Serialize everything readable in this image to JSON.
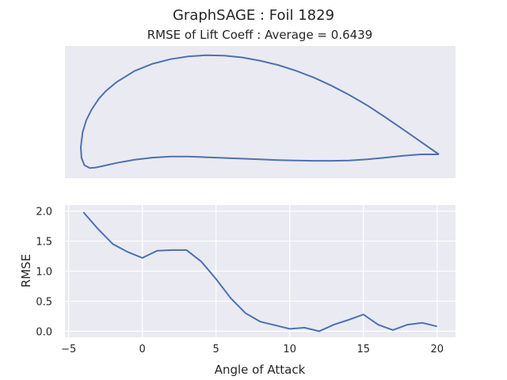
{
  "figure": {
    "suptitle": "GraphSAGE   :   Foil 1829",
    "subtitle": "RMSE of Lift Coeff : Average = 0.6439"
  },
  "colors": {
    "line": "#4c72b0",
    "panel_bg": "#eaeaf2",
    "grid": "#ffffff"
  },
  "chart_data": [
    {
      "type": "line",
      "name": "airfoil-shape",
      "title": "",
      "grid": false,
      "axes_visible": false,
      "series": [
        {
          "x": [
            1.0,
            0.95,
            0.9,
            0.85,
            0.8,
            0.75,
            0.7,
            0.65,
            0.6,
            0.55,
            0.5,
            0.45,
            0.4,
            0.35,
            0.3,
            0.25,
            0.2,
            0.15,
            0.1,
            0.07,
            0.05,
            0.03,
            0.015,
            0.005,
            0.0,
            0.002,
            0.01,
            0.025,
            0.04,
            0.06,
            0.1,
            0.15,
            0.2,
            0.25,
            0.3,
            0.35,
            0.4,
            0.45,
            0.5,
            0.55,
            0.6,
            0.65,
            0.7,
            0.75,
            0.8,
            0.85,
            0.9,
            0.95,
            1.0
          ],
          "y": [
            0.0,
            0.035,
            0.07,
            0.104,
            0.137,
            0.166,
            0.192,
            0.215,
            0.234,
            0.25,
            0.262,
            0.271,
            0.276,
            0.277,
            0.274,
            0.266,
            0.253,
            0.233,
            0.202,
            0.177,
            0.155,
            0.125,
            0.095,
            0.062,
            0.02,
            -0.01,
            -0.03,
            -0.038,
            -0.037,
            -0.033,
            -0.024,
            -0.015,
            -0.009,
            -0.006,
            -0.006,
            -0.008,
            -0.01,
            -0.012,
            -0.014,
            -0.016,
            -0.017,
            -0.018,
            -0.018,
            -0.017,
            -0.014,
            -0.009,
            -0.004,
            0.0,
            0.0
          ]
        }
      ]
    },
    {
      "type": "line",
      "name": "rmse-vs-aoa",
      "title": "",
      "xlabel": "Angle of Attack",
      "ylabel": "RMSE",
      "xlim": [
        -5.25,
        21.25
      ],
      "ylim": [
        -0.1,
        2.1
      ],
      "xticks": [
        -5,
        0,
        5,
        10,
        15,
        20
      ],
      "yticks": [
        0.0,
        0.5,
        1.0,
        1.5,
        2.0
      ],
      "xtick_labels": [
        "−5",
        "0",
        "5",
        "10",
        "15",
        "20"
      ],
      "ytick_labels": [
        "0.0",
        "0.5",
        "1.0",
        "1.5",
        "2.0"
      ],
      "grid": true,
      "series": [
        {
          "x": [
            -4,
            -3,
            -2,
            -1,
            0,
            1,
            2,
            3,
            4,
            5,
            6,
            7,
            8,
            9,
            10,
            11,
            12,
            13,
            14,
            15,
            16,
            17,
            18,
            19,
            20
          ],
          "y": [
            1.98,
            1.7,
            1.45,
            1.32,
            1.22,
            1.34,
            1.35,
            1.35,
            1.16,
            0.87,
            0.55,
            0.3,
            0.16,
            0.1,
            0.04,
            0.06,
            0.0,
            0.11,
            0.19,
            0.28,
            0.11,
            0.02,
            0.11,
            0.14,
            0.08
          ]
        }
      ]
    }
  ]
}
